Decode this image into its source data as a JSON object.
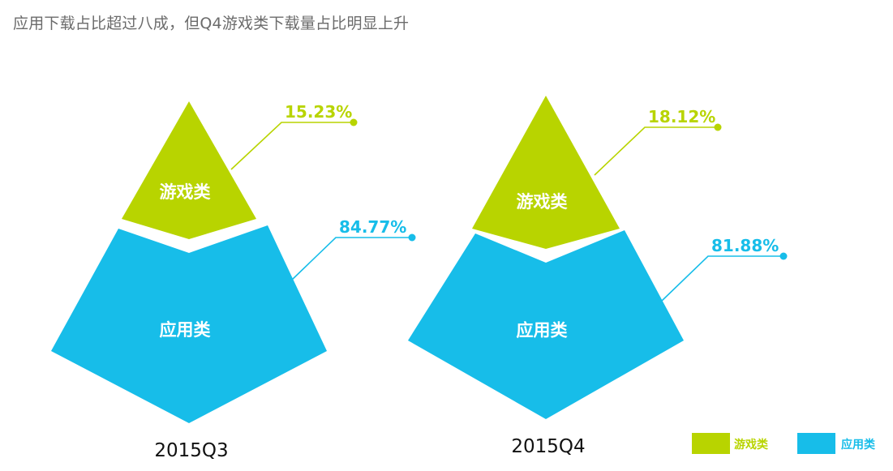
{
  "title": "应用下载占比超过八成，但Q4游戏类下载量占比明显上升",
  "colors": {
    "game": "#b8d400",
    "app": "#17bde9"
  },
  "chart_data": {
    "type": "pyramid",
    "categories": [
      "2015Q3",
      "2015Q4"
    ],
    "series": [
      {
        "name": "游戏类",
        "values": [
          15.23,
          18.12
        ],
        "labels": [
          "15.23%",
          "18.12%"
        ]
      },
      {
        "name": "应用类",
        "values": [
          84.77,
          81.88
        ],
        "labels": [
          "84.77%",
          "81.88%"
        ]
      }
    ],
    "legend": [
      "游戏类",
      "应用类"
    ],
    "legend_position": "bottom-right",
    "unit": "%"
  }
}
